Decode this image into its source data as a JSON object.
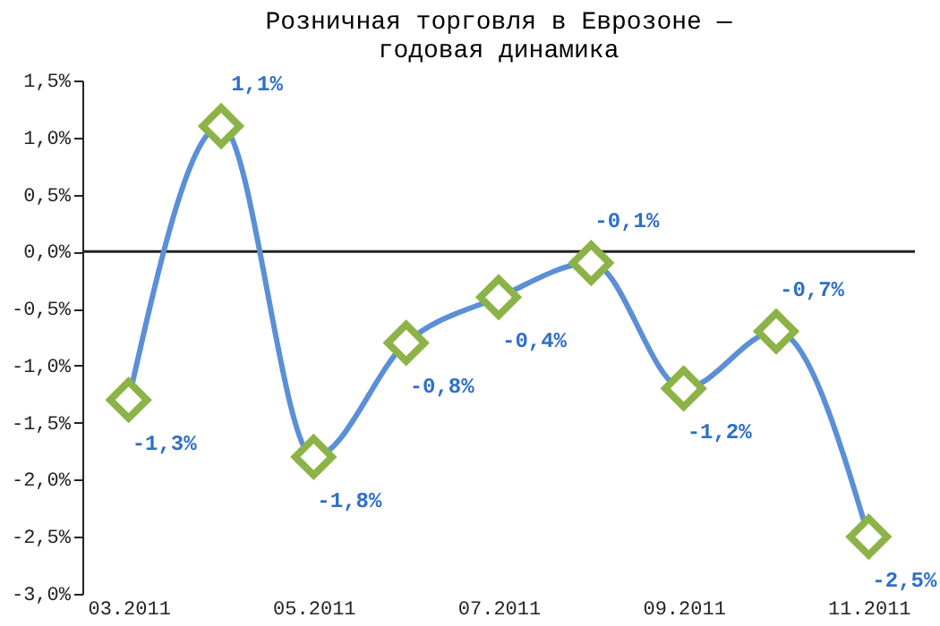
{
  "chart_data": {
    "type": "line",
    "title": "Розничная торговля в Еврозоне — годовая динамика",
    "categories": [
      "03.2011",
      null,
      "05.2011",
      null,
      "07.2011",
      null,
      "09.2011",
      null,
      "11.2011"
    ],
    "series": [
      {
        "color": "#5b8fd6",
        "values": [
          -1.3,
          1.1,
          -1.8,
          -0.8,
          -0.4,
          -0.1,
          -1.2,
          -0.7,
          -2.5
        ],
        "value_labels": [
          "-1,3%",
          "1,1%",
          "-1,8%",
          "-0,8%",
          "-0,4%",
          "-0,1%",
          "-1,2%",
          "-0,7%",
          "-2,5%"
        ]
      }
    ],
    "marker": "diamond",
    "grid": false,
    "ylim": [
      -3.0,
      1.5
    ],
    "yticks": [
      {
        "value": -3.0,
        "label": "-3,0%"
      },
      {
        "value": -2.5,
        "label": "-2,5%"
      },
      {
        "value": -2.0,
        "label": "-2,0%"
      },
      {
        "value": -1.5,
        "label": "-1,5%"
      },
      {
        "value": -1.0,
        "label": "-1,0%"
      },
      {
        "value": -0.5,
        "label": "-0,5%"
      },
      {
        "value": 0.0,
        "label": "0,0%"
      },
      {
        "value": 0.5,
        "label": "0,5%"
      },
      {
        "value": 1.0,
        "label": "1,0%"
      },
      {
        "value": 1.5,
        "label": "1,5%"
      }
    ],
    "ref_lines": [
      {
        "axis": "y",
        "value": 0
      }
    ]
  }
}
